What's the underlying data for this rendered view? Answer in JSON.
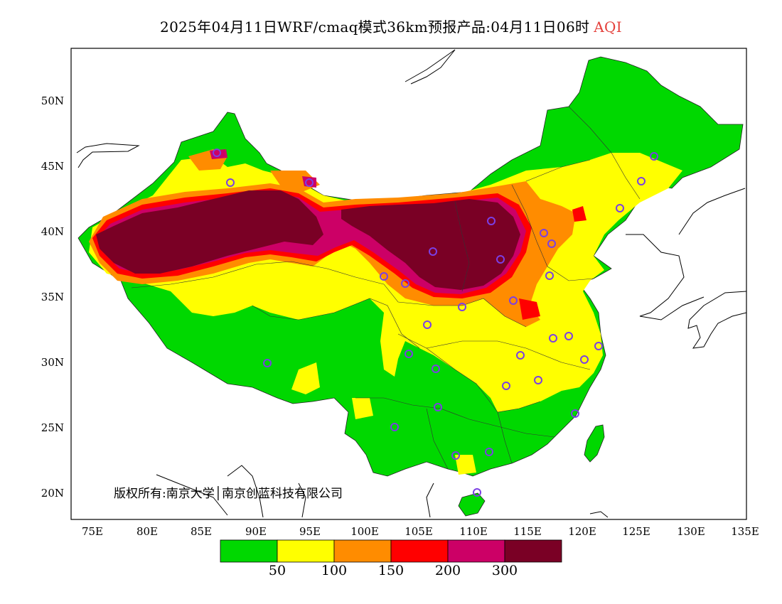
{
  "title": {
    "main": "2025年04月11日WRF/cmaq模式36km预报产品:04月11日06时",
    "product": "AQI"
  },
  "copyright": "版权所有:南京大学│南京创蓝科技有限公司",
  "lat_labels": [
    "50N",
    "45N",
    "40N",
    "35N",
    "30N",
    "25N",
    "20N"
  ],
  "lon_labels": [
    "75E",
    "80E",
    "85E",
    "90E",
    "95E",
    "100E",
    "105E",
    "110E",
    "115E",
    "120E",
    "125E",
    "130E",
    "135E"
  ],
  "colorbar": {
    "colors": [
      "#00d800",
      "#ffff00",
      "#ff8c00",
      "#ff0000",
      "#cc0066",
      "#7a0025"
    ],
    "labels": [
      "50",
      "100",
      "150",
      "200",
      "300"
    ]
  },
  "colors": {
    "good": "#00d800",
    "moderate": "#ffff00",
    "usg": "#ff8c00",
    "unhealthy": "#ff0000",
    "very_unhealthy": "#cc0066",
    "hazardous": "#7a0025",
    "station_ring": "#7b3fe4"
  }
}
